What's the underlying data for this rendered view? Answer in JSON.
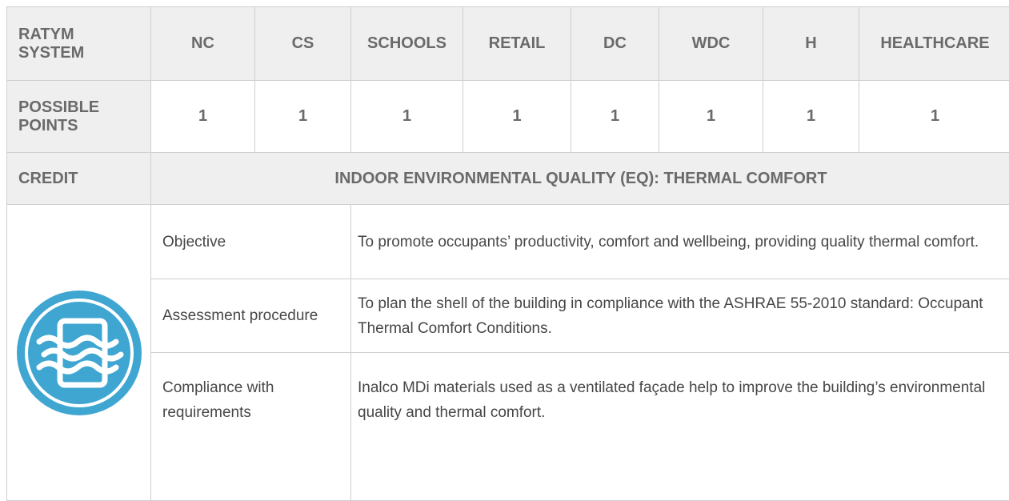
{
  "header": {
    "label": "RATYM SYSTEM",
    "columns": [
      "NC",
      "CS",
      "SCHOOLS",
      "RETAIL",
      "DC",
      "WDC",
      "H",
      "HEALTHCARE"
    ]
  },
  "points": {
    "label": "POSSIBLE POINTS",
    "values": [
      1,
      1,
      1,
      1,
      1,
      1,
      1,
      1
    ]
  },
  "credit": {
    "label": "CREDIT",
    "value": "INDOOR ENVIRONMENTAL QUALITY (EQ): THERMAL COMFORT"
  },
  "rows": [
    {
      "label": "Objective",
      "description": "To promote occupants’ productivity, comfort and wellbeing, providing quality thermal comfort."
    },
    {
      "label": "Assessment proce­dure",
      "description": "To plan the shell of the building in compliance with the ASHRAE 55-2010 standard: Occupant Thermal Comfort Conditions."
    },
    {
      "label": "Compliance with requirements",
      "description": "Inalco MDi  materials used as a ventilated façade help to improve the building’s environmental quality and thermal comfort."
    }
  ]
}
